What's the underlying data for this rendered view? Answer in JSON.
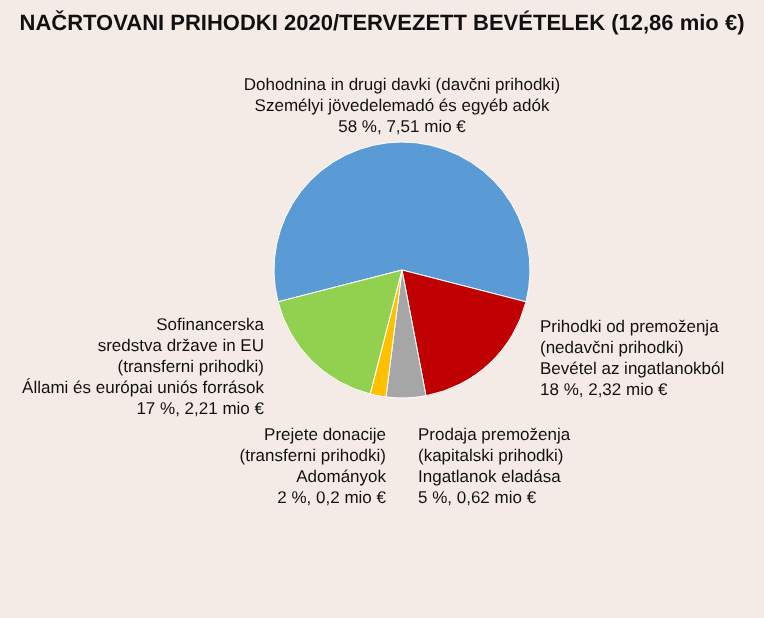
{
  "chart_data": {
    "type": "pie",
    "title": "NAČRTOVANI PRIHODKI 2020/TERVEZETT BEVÉTELEK (12,86 mio €)",
    "categories": [
      "Dohodnina in drugi davki (davčni prihodki)\nSzemélyi jövedelemadó és egyéb adók",
      "Prihodki od premoženja\n(nedavčni prihodki)\nBevétel az ingatlanokból",
      "Prodaja premoženja\n(kapitalski prihodki)\nIngatlanok eladása",
      "Prejete donacije\n(transferni prihodki)\nAdományok",
      "Sofinancerska\nsredstva države in EU\n(transferni prihodki)\nÁllami és európai uniós források"
    ],
    "values": [
      58,
      18,
      5,
      2,
      17
    ],
    "value_labels": [
      "58 %, 7,51 mio €",
      "18 %, 2,32 mio €",
      "5 %, 0,62 mio €",
      "2 %, 0,2 mio €",
      "17 %, 2,21 mio €"
    ],
    "colors": [
      "#5b9bd5",
      "#c00000",
      "#a6a6a6",
      "#ffc000",
      "#92d050"
    ]
  }
}
